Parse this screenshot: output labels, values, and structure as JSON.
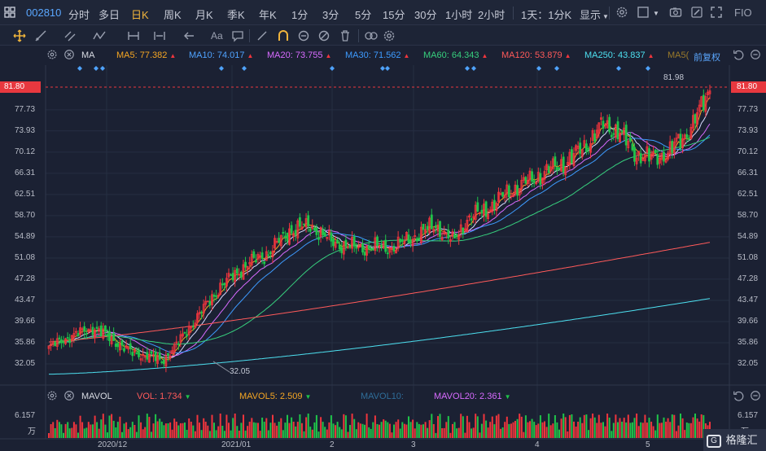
{
  "topbar": {
    "stock_code": "002810",
    "periods": [
      "分时",
      "多日",
      "日K",
      "周K",
      "月K",
      "季K",
      "年K",
      "1分",
      "3分",
      "5分",
      "15分",
      "30分",
      "1小时",
      "2小时",
      "1天：1分K"
    ],
    "active_period": "日K",
    "display_label": "显示",
    "fio_label": "FIO"
  },
  "ma_bar": {
    "label": "MA",
    "items": [
      {
        "text": "MA5: 77.382",
        "color": "#f5a623"
      },
      {
        "text": "MA10: 74.017",
        "color": "#4fa3ff"
      },
      {
        "text": "MA20: 73.755",
        "color": "#d86bff"
      },
      {
        "text": "MA30: 71.562",
        "color": "#3d9bff"
      },
      {
        "text": "MA60: 64.343",
        "color": "#37d07e"
      },
      {
        "text": "MA120: 53.879",
        "color": "#ff5a5a"
      },
      {
        "text": "MA250: 43.837",
        "color": "#4de0f0"
      },
      {
        "text": "MA5(",
        "color": "#9a7a2a"
      }
    ],
    "adjust_label": "前复权"
  },
  "price_axis": {
    "labels": [
      "81.80",
      "77.73",
      "73.93",
      "70.12",
      "66.31",
      "62.51",
      "58.70",
      "54.89",
      "51.08",
      "47.28",
      "43.47",
      "39.66",
      "35.86",
      "32.05"
    ],
    "current_price": "81.80",
    "high_marker": "81.98",
    "low_marker": "32.05"
  },
  "volume": {
    "label": "MAVOL",
    "vol": "VOL: 1.734",
    "mavol5": "MAVOL5: 2.509",
    "mavol10": "MAVOL10:",
    "mavol20": "MAVOL20: 2.361",
    "axis_top": "6.157",
    "axis_unit": "万"
  },
  "x_axis": [
    "2020/12",
    "2021/01",
    "2",
    "3",
    "4",
    "5"
  ],
  "colors": {
    "up": "#f0353d",
    "down": "#1fc44a",
    "background": "#1b2133",
    "accent": "#f0b43c"
  },
  "logo": {
    "text": "格隆汇"
  }
}
